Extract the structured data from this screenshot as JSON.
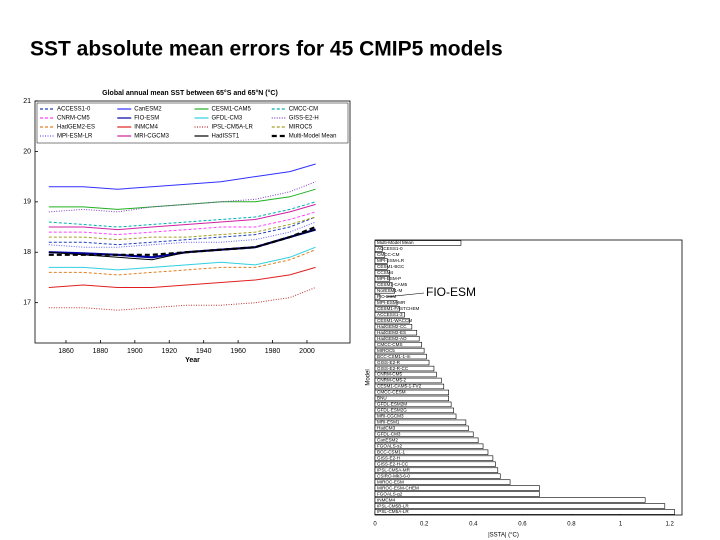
{
  "slide_title": "SST absolute mean errors for 45 CMIP5 models",
  "chart_data": [
    {
      "type": "line",
      "title": "Global annual mean SST between 65°S and 65°N (°C)",
      "x_label": "Year",
      "x": [
        1850,
        1870,
        1890,
        1910,
        1930,
        1950,
        1970,
        1990,
        2005
      ],
      "xlim": [
        1842,
        2025
      ],
      "xticks": [
        1860,
        1880,
        1900,
        1920,
        1940,
        1960,
        1980,
        2000
      ],
      "ylim": [
        16.2,
        21
      ],
      "yticks": [
        17,
        18,
        19,
        20,
        21
      ],
      "series": [
        {
          "name": "ACCESS1-0",
          "color": "#1f3fbf",
          "linestyle": "dashed",
          "values": [
            18.2,
            18.2,
            18.15,
            18.2,
            18.25,
            18.3,
            18.35,
            18.5,
            18.7
          ]
        },
        {
          "name": "CanESM2",
          "color": "#3030ff",
          "linestyle": "solid",
          "values": [
            19.3,
            19.3,
            19.25,
            19.3,
            19.35,
            19.4,
            19.5,
            19.6,
            19.75
          ]
        },
        {
          "name": "CESM1-CAM5",
          "color": "#20b020",
          "linestyle": "solid",
          "values": [
            18.9,
            18.9,
            18.85,
            18.9,
            18.95,
            19.0,
            19.0,
            19.1,
            19.25
          ]
        },
        {
          "name": "CMCC-CM",
          "color": "#00b0b0",
          "linestyle": "dashed",
          "values": [
            18.6,
            18.55,
            18.5,
            18.55,
            18.6,
            18.65,
            18.7,
            18.85,
            19.0
          ]
        },
        {
          "name": "CNRM-CM5",
          "color": "#ff40ff",
          "linestyle": "dashed",
          "values": [
            18.4,
            18.4,
            18.35,
            18.4,
            18.45,
            18.5,
            18.5,
            18.65,
            18.8
          ]
        },
        {
          "name": "FIO-ESM",
          "color": "#0000a0",
          "linestyle": "solid",
          "values": [
            18.0,
            17.98,
            17.95,
            17.9,
            18.0,
            18.05,
            18.1,
            18.3,
            18.45
          ]
        },
        {
          "name": "GFDL-CM3",
          "color": "#30d0e0",
          "linestyle": "solid",
          "values": [
            17.7,
            17.7,
            17.65,
            17.7,
            17.75,
            17.8,
            17.75,
            17.9,
            18.1
          ]
        },
        {
          "name": "GISS-E2-H",
          "color": "#8040c0",
          "linestyle": "dotted",
          "values": [
            18.8,
            18.85,
            18.8,
            18.9,
            18.95,
            19.0,
            19.05,
            19.2,
            19.4
          ]
        },
        {
          "name": "HadGEM2-ES",
          "color": "#e08020",
          "linestyle": "dashed",
          "values": [
            17.6,
            17.6,
            17.55,
            17.6,
            17.65,
            17.7,
            17.7,
            17.85,
            18.05
          ]
        },
        {
          "name": "INMCM4",
          "color": "#e02020",
          "linestyle": "solid",
          "values": [
            17.3,
            17.35,
            17.3,
            17.3,
            17.35,
            17.4,
            17.45,
            17.55,
            17.7
          ]
        },
        {
          "name": "IPSL-CM5A-LR",
          "color": "#c03030",
          "linestyle": "dotted",
          "values": [
            16.9,
            16.9,
            16.85,
            16.9,
            16.95,
            16.95,
            17.0,
            17.1,
            17.3
          ]
        },
        {
          "name": "MIROC5",
          "color": "#a0a020",
          "linestyle": "dashed",
          "values": [
            18.3,
            18.3,
            18.25,
            18.3,
            18.3,
            18.35,
            18.4,
            18.55,
            18.7
          ]
        },
        {
          "name": "MPI-ESM-LR",
          "color": "#6060ff",
          "linestyle": "dotted",
          "values": [
            18.15,
            18.1,
            18.1,
            18.15,
            18.2,
            18.2,
            18.25,
            18.4,
            18.6
          ]
        },
        {
          "name": "MRI-CGCM3",
          "color": "#d020a0",
          "linestyle": "solid",
          "values": [
            18.5,
            18.5,
            18.45,
            18.5,
            18.55,
            18.6,
            18.65,
            18.8,
            18.95
          ]
        },
        {
          "name": "HadISST1",
          "color": "#000000",
          "linestyle": "solid",
          "values": [
            18.0,
            17.95,
            17.9,
            17.85,
            18.0,
            18.05,
            18.1,
            18.3,
            18.45
          ]
        },
        {
          "name": "Multi-Model Mean",
          "color": "#000000",
          "linestyle": "thick-dashed",
          "values": [
            17.95,
            17.95,
            17.95,
            17.95,
            18.0,
            18.05,
            18.1,
            18.3,
            18.5
          ]
        }
      ]
    },
    {
      "type": "hbar",
      "annotation": "FIO-ESM",
      "x_label": "|SSTA| (°C)",
      "y_label": "Model",
      "color": "#ffffff",
      "xlim": [
        0,
        1.25
      ],
      "xticks": [
        0,
        0.2,
        0.4,
        0.6,
        0.8,
        1,
        1.2
      ],
      "categories": [
        "Multi-Model Mean",
        "ACCESS1-0",
        "CMCC-CM",
        "MPI-ESM-LR",
        "CESM1-BGC",
        "CCSM4",
        "MPI-ESM-P",
        "CESM1-CAM5",
        "NorESM1-M",
        "FIO-ESM",
        "MPI-ESM-MR",
        "CESM1-FASTCHEM",
        "ACCESS1-3",
        "CESM1-WACCM",
        "HadGEM2-CC",
        "HadGEM2-ES",
        "HadGEM2-AO",
        "CMCC-CMS",
        "MIROC5",
        "BCC-CSM1-1-m",
        "GISS-E2-R",
        "GISS-E2-R-CC",
        "CNRM-CM5",
        "CNRM-CM5-2",
        "CESM1-CAM5-1-FV2",
        "CMCC-CESM",
        "BNU",
        "GFDL-ESM2M",
        "GFDL-ESM2G",
        "MRI-CGCM3",
        "MRI-ESM1",
        "HadCM3",
        "GFDL-CM3",
        "CanESM2",
        "FGOALS-s2",
        "BCC-CSM1-1",
        "GISS-E2-H",
        "GISS-E2-H-CC",
        "IPSL-CM5A-MR",
        "CSIRO-Mk3-6-0",
        "MIROC-ESM",
        "MIROC-ESM-CHEM",
        "FGOALS-g2",
        "INMCM4",
        "IPSL-CM5B-LR",
        "IPSL-CM5A-LR"
      ],
      "values": [
        0.35,
        0.03,
        0.04,
        0.05,
        0.05,
        0.06,
        0.06,
        0.07,
        0.08,
        0.02,
        0.09,
        0.1,
        0.12,
        0.14,
        0.15,
        0.17,
        0.18,
        0.19,
        0.2,
        0.21,
        0.22,
        0.24,
        0.25,
        0.27,
        0.28,
        0.3,
        0.3,
        0.31,
        0.32,
        0.33,
        0.37,
        0.38,
        0.4,
        0.42,
        0.44,
        0.46,
        0.48,
        0.49,
        0.5,
        0.51,
        0.55,
        0.67,
        0.67,
        1.1,
        1.18,
        1.22
      ]
    }
  ]
}
